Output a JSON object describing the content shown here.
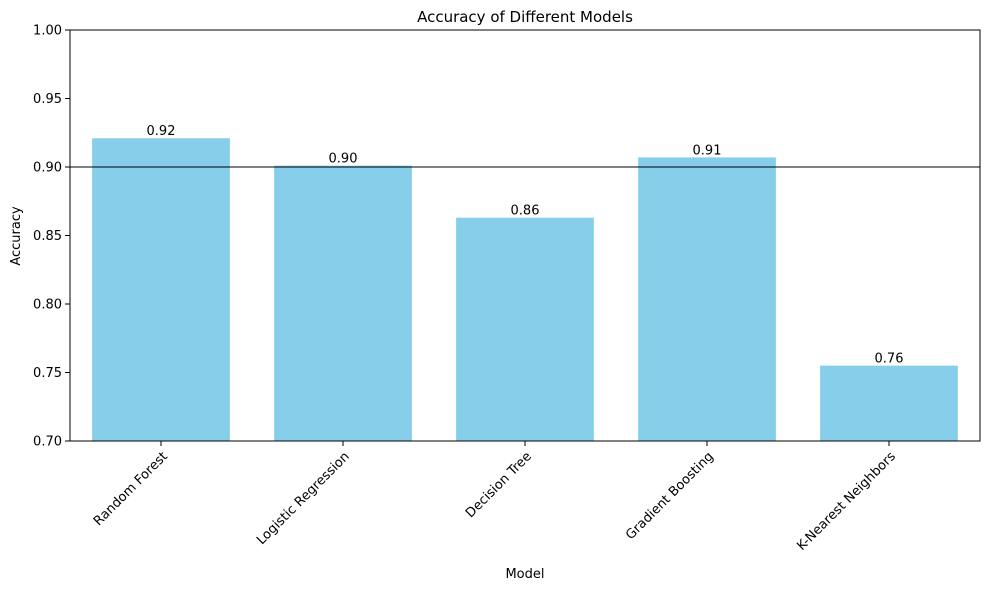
{
  "chart_data": {
    "type": "bar",
    "title": "Accuracy of Different Models",
    "xlabel": "Model",
    "ylabel": "Accuracy",
    "categories": [
      "Random Forest",
      "Logistic Regression",
      "Decision Tree",
      "Gradient Boosting",
      "K-Nearest Neighbors"
    ],
    "values": [
      0.921,
      0.901,
      0.863,
      0.907,
      0.755
    ],
    "data_labels": [
      "0.92",
      "0.90",
      "0.86",
      "0.91",
      "0.76"
    ],
    "ylim": [
      0.7,
      1.0
    ],
    "yticks": [
      0.7,
      0.75,
      0.8,
      0.85,
      0.9,
      0.95,
      1.0
    ],
    "ytick_labels": [
      "0.70",
      "0.75",
      "0.80",
      "0.85",
      "0.90",
      "0.95",
      "1.00"
    ],
    "reference_line": 0.9,
    "grid": false,
    "bar_color": "#87ceeb"
  }
}
